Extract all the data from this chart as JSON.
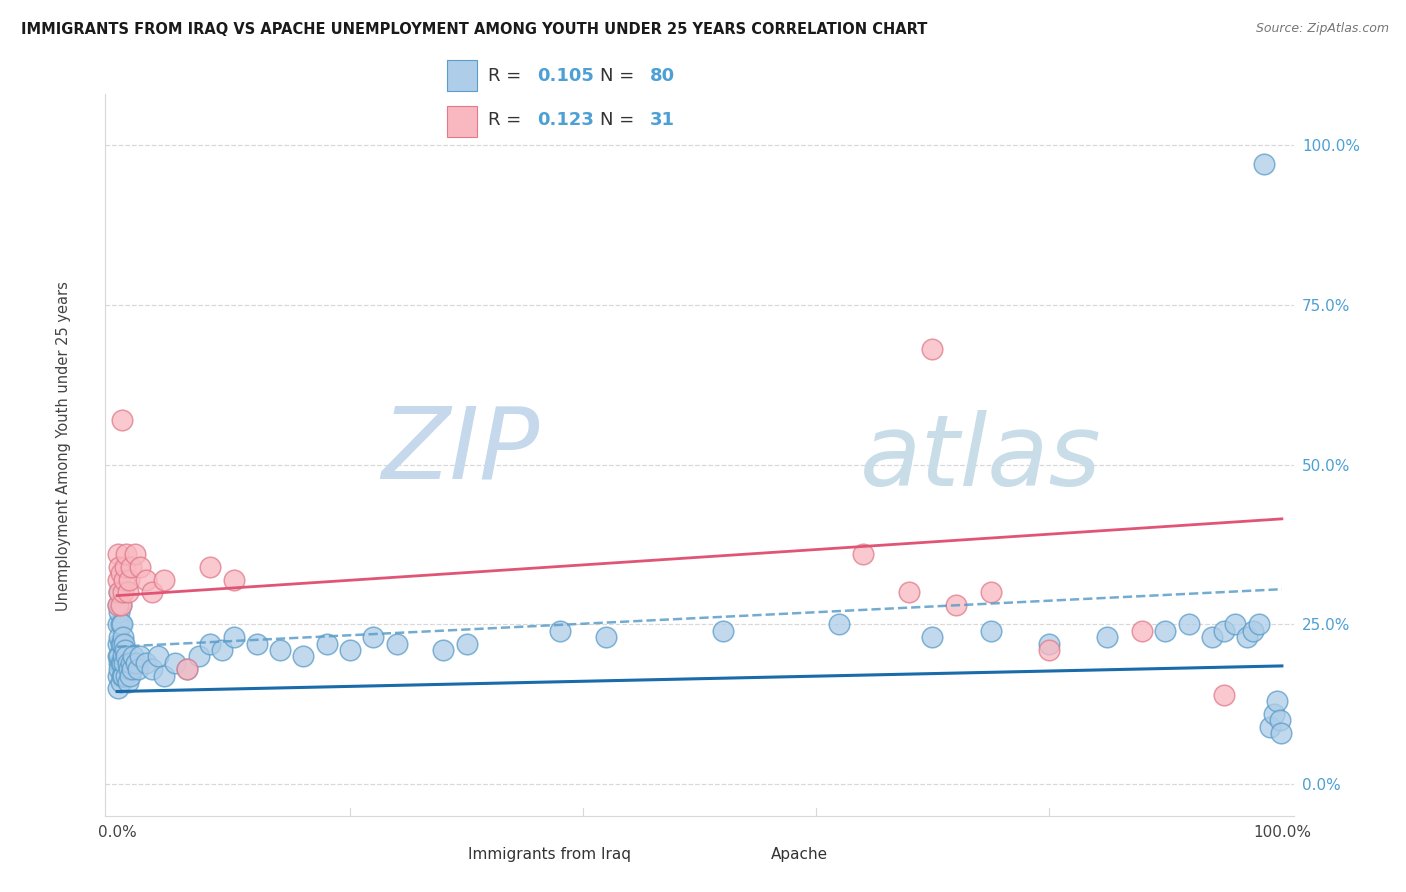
{
  "title": "IMMIGRANTS FROM IRAQ VS APACHE UNEMPLOYMENT AMONG YOUTH UNDER 25 YEARS CORRELATION CHART",
  "source": "Source: ZipAtlas.com",
  "ylabel": "Unemployment Among Youth under 25 years",
  "yticks_labels": [
    "0.0%",
    "25.0%",
    "50.0%",
    "75.0%",
    "100.0%"
  ],
  "ytick_vals": [
    0.0,
    0.25,
    0.5,
    0.75,
    1.0
  ],
  "xlim": [
    -0.01,
    1.01
  ],
  "ylim": [
    -0.05,
    1.08
  ],
  "legend_blue_label": "Immigrants from Iraq",
  "legend_pink_label": "Apache",
  "R_blue": "0.105",
  "N_blue": "80",
  "R_pink": "0.123",
  "N_pink": "31",
  "blue_fill": "#aecde8",
  "blue_edge": "#5b9dc9",
  "pink_fill": "#f9b8c0",
  "pink_edge": "#e07a8a",
  "trend_blue_solid_color": "#1a6baa",
  "trend_pink_solid_color": "#e05575",
  "trend_blue_dashed_color": "#5b9dc9",
  "label_num_color": "#4da0d4",
  "ytick_color": "#4da0d4",
  "grid_color": "#d8d8d8",
  "title_color": "#1a1a1a",
  "source_color": "#777777",
  "watermark_zip_color": "#c8dff0",
  "watermark_atlas_color": "#c8dff0",
  "blue_trend_x0": 0.0,
  "blue_trend_x1": 1.0,
  "blue_trend_y0": 0.145,
  "blue_trend_y1": 0.185,
  "pink_trend_y0": 0.295,
  "pink_trend_y1": 0.415,
  "dashed_trend_y0": 0.215,
  "dashed_trend_y1": 0.305,
  "blue_x": [
    0.001,
    0.001,
    0.001,
    0.001,
    0.001,
    0.001,
    0.0015,
    0.002,
    0.002,
    0.002,
    0.002,
    0.002,
    0.003,
    0.003,
    0.003,
    0.003,
    0.003,
    0.004,
    0.004,
    0.004,
    0.004,
    0.005,
    0.005,
    0.005,
    0.006,
    0.006,
    0.007,
    0.008,
    0.008,
    0.009,
    0.009,
    0.01,
    0.011,
    0.012,
    0.013,
    0.014,
    0.016,
    0.018,
    0.02,
    0.025,
    0.03,
    0.035,
    0.04,
    0.05,
    0.06,
    0.07,
    0.08,
    0.09,
    0.1,
    0.12,
    0.14,
    0.16,
    0.18,
    0.2,
    0.22,
    0.24,
    0.28,
    0.3,
    0.38,
    0.42,
    0.52,
    0.62,
    0.7,
    0.75,
    0.8,
    0.85,
    0.9,
    0.92,
    0.94,
    0.95,
    0.96,
    0.97,
    0.975,
    0.98,
    0.985,
    0.99,
    0.993,
    0.996,
    0.998,
    0.999
  ],
  "blue_y": [
    0.28,
    0.25,
    0.22,
    0.2,
    0.17,
    0.15,
    0.19,
    0.3,
    0.27,
    0.23,
    0.2,
    0.18,
    0.28,
    0.25,
    0.22,
    0.19,
    0.16,
    0.25,
    0.22,
    0.19,
    0.17,
    0.23,
    0.2,
    0.17,
    0.22,
    0.19,
    0.21,
    0.2,
    0.17,
    0.19,
    0.16,
    0.18,
    0.17,
    0.19,
    0.18,
    0.2,
    0.19,
    0.18,
    0.2,
    0.19,
    0.18,
    0.2,
    0.17,
    0.19,
    0.18,
    0.2,
    0.22,
    0.21,
    0.23,
    0.22,
    0.21,
    0.2,
    0.22,
    0.21,
    0.23,
    0.22,
    0.21,
    0.22,
    0.24,
    0.23,
    0.24,
    0.25,
    0.23,
    0.24,
    0.22,
    0.23,
    0.24,
    0.25,
    0.23,
    0.24,
    0.25,
    0.23,
    0.24,
    0.25,
    0.97,
    0.09,
    0.11,
    0.13,
    0.1,
    0.08
  ],
  "pink_x": [
    0.001,
    0.001,
    0.001,
    0.002,
    0.002,
    0.003,
    0.003,
    0.004,
    0.005,
    0.006,
    0.007,
    0.008,
    0.009,
    0.01,
    0.012,
    0.015,
    0.02,
    0.025,
    0.03,
    0.04,
    0.06,
    0.08,
    0.1,
    0.64,
    0.68,
    0.7,
    0.72,
    0.75,
    0.8,
    0.88,
    0.95
  ],
  "pink_y": [
    0.28,
    0.32,
    0.36,
    0.3,
    0.34,
    0.28,
    0.33,
    0.57,
    0.3,
    0.32,
    0.34,
    0.36,
    0.3,
    0.32,
    0.34,
    0.36,
    0.34,
    0.32,
    0.3,
    0.32,
    0.18,
    0.34,
    0.32,
    0.36,
    0.3,
    0.68,
    0.28,
    0.3,
    0.21,
    0.24,
    0.14
  ]
}
